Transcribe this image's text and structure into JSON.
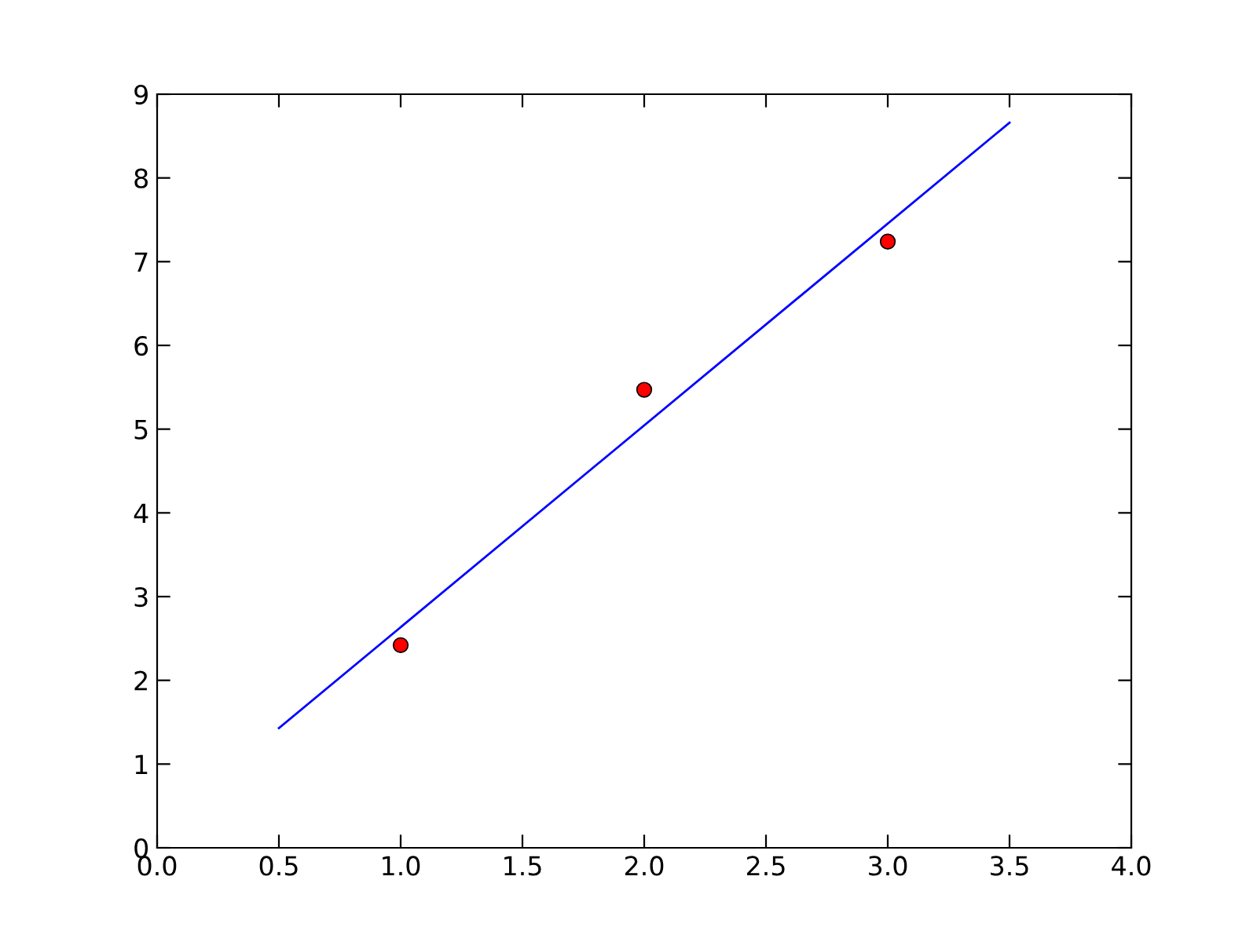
{
  "chart_data": {
    "type": "scatter",
    "xlim": [
      0,
      4
    ],
    "ylim": [
      0,
      9
    ],
    "xticks": [
      {
        "value": 0,
        "label": "0.0"
      },
      {
        "value": 0.5,
        "label": "0.5"
      },
      {
        "value": 1,
        "label": "1.0"
      },
      {
        "value": 1.5,
        "label": "1.5"
      },
      {
        "value": 2,
        "label": "2.0"
      },
      {
        "value": 2.5,
        "label": "2.5"
      },
      {
        "value": 3,
        "label": "3.0"
      },
      {
        "value": 3.5,
        "label": "3.5"
      },
      {
        "value": 4,
        "label": "4.0"
      }
    ],
    "yticks": [
      0,
      1,
      2,
      3,
      4,
      5,
      6,
      7,
      8,
      9
    ],
    "grid": false,
    "legend": false,
    "series": [
      {
        "type": "scatter",
        "color": "#ff0000",
        "marker": "circle",
        "x": [
          1,
          2,
          3
        ],
        "values": [
          2.42,
          5.47,
          7.24
        ]
      },
      {
        "type": "line",
        "color": "#0000ff",
        "marker": "none",
        "line_style": "solid",
        "x": [
          0.5,
          3.5
        ],
        "values": [
          1.43,
          8.66
        ]
      }
    ]
  }
}
